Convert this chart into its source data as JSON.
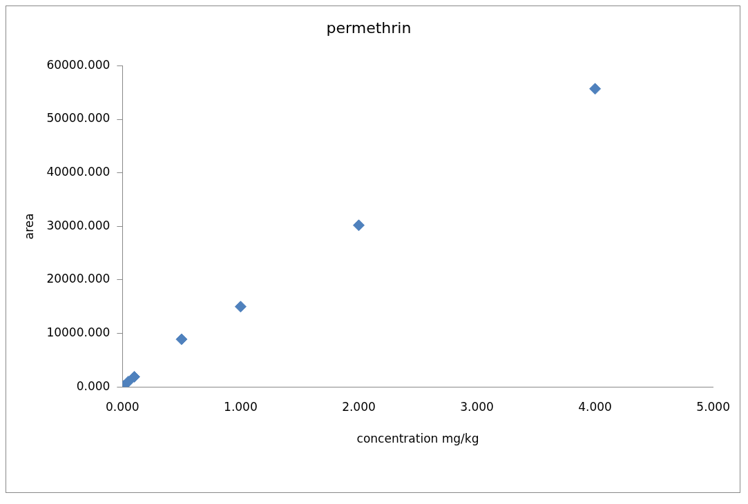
{
  "chart_data": {
    "type": "scatter",
    "title": "permethrin",
    "xlabel": "concentration mg/kg",
    "ylabel": "area",
    "x": [
      0.01,
      0.05,
      0.1,
      0.5,
      1,
      2,
      4
    ],
    "series": [
      {
        "color": "#4f81bd",
        "values": [
          200,
          1000,
          1900,
          8900,
          15000,
          30200,
          55700
        ]
      }
    ],
    "xlim": [
      0,
      5
    ],
    "xticks": [
      {
        "value": 0,
        "label": "0.000"
      },
      {
        "value": 1,
        "label": "1.000"
      },
      {
        "value": 2,
        "label": "2.000"
      },
      {
        "value": 3,
        "label": "3.000"
      },
      {
        "value": 4,
        "label": "4.000"
      },
      {
        "value": 5,
        "label": "5.000"
      }
    ],
    "ylim": [
      0,
      60000
    ],
    "yticks": [
      {
        "value": 0,
        "label": "0.000"
      },
      {
        "value": 10000,
        "label": "10000.000"
      },
      {
        "value": 20000,
        "label": "20000.000"
      },
      {
        "value": 30000,
        "label": "30000.000"
      },
      {
        "value": 40000,
        "label": "40000.000"
      },
      {
        "value": 50000,
        "label": "50000.000"
      },
      {
        "value": 60000,
        "label": "60000.000"
      }
    ],
    "grid": false,
    "legend": false,
    "marker": "diamond"
  }
}
